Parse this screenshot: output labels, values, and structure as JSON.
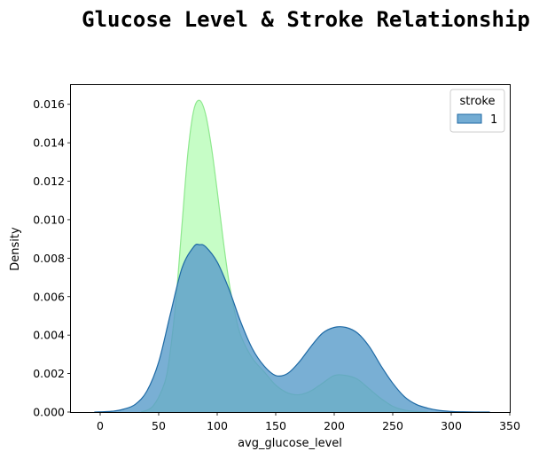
{
  "chart_data": {
    "type": "area",
    "title": "Glucose Level & Stroke Relationship",
    "xlabel": "avg_glucose_level",
    "ylabel": "Density",
    "xlim": [
      -25,
      350
    ],
    "ylim": [
      0,
      0.017
    ],
    "x_ticks": [
      "0",
      "50",
      "100",
      "150",
      "200",
      "250",
      "300",
      "350"
    ],
    "x_tick_values": [
      0,
      50,
      100,
      150,
      200,
      250,
      300,
      350
    ],
    "y_ticks": [
      "0.000",
      "0.002",
      "0.004",
      "0.006",
      "0.008",
      "0.010",
      "0.012",
      "0.014",
      "0.016"
    ],
    "y_tick_values": [
      0,
      0.002,
      0.004,
      0.006,
      0.008,
      0.01,
      0.012,
      0.014,
      0.016
    ],
    "grid": false,
    "legend": {
      "title": "stroke",
      "placement": "top-right"
    },
    "series": [
      {
        "name": "",
        "color": "#98fb98",
        "fill_color": "#98fb98",
        "stroke_color": "#8ee88e",
        "x": [
          35,
          45,
          55,
          60,
          65,
          70,
          75,
          80,
          85,
          90,
          95,
          100,
          105,
          110,
          115,
          120,
          130,
          140,
          150,
          160,
          170,
          180,
          190,
          200,
          210,
          220,
          230,
          240,
          250,
          260,
          270,
          280
        ],
        "y": [
          0,
          0.0003,
          0.0015,
          0.0032,
          0.006,
          0.0098,
          0.0135,
          0.0157,
          0.0162,
          0.0155,
          0.0138,
          0.0115,
          0.009,
          0.0068,
          0.0052,
          0.004,
          0.0028,
          0.0021,
          0.0014,
          0.001,
          0.0009,
          0.0011,
          0.0015,
          0.0019,
          0.0019,
          0.0017,
          0.0012,
          0.0007,
          0.0003,
          0.0001,
          3e-05,
          0
        ]
      },
      {
        "name": "1",
        "color": "#1f77b4",
        "fill_color": "#5b9dcb",
        "stroke_color": "#1f6aa5",
        "x": [
          -5,
          10,
          20,
          30,
          40,
          50,
          60,
          70,
          80,
          85,
          90,
          100,
          110,
          120,
          130,
          140,
          150,
          160,
          170,
          180,
          190,
          200,
          210,
          220,
          230,
          240,
          250,
          260,
          270,
          280,
          290,
          300,
          310,
          320,
          333
        ],
        "y": [
          0,
          4e-05,
          0.00015,
          0.0004,
          0.0011,
          0.0026,
          0.0051,
          0.0075,
          0.0086,
          0.0087,
          0.0086,
          0.0078,
          0.0064,
          0.0047,
          0.0033,
          0.0024,
          0.0019,
          0.002,
          0.0026,
          0.0034,
          0.0041,
          0.0044,
          0.0044,
          0.0041,
          0.0034,
          0.0024,
          0.0015,
          0.0008,
          0.0004,
          0.0002,
          8e-05,
          3e-05,
          1e-05,
          0,
          0
        ]
      }
    ]
  }
}
